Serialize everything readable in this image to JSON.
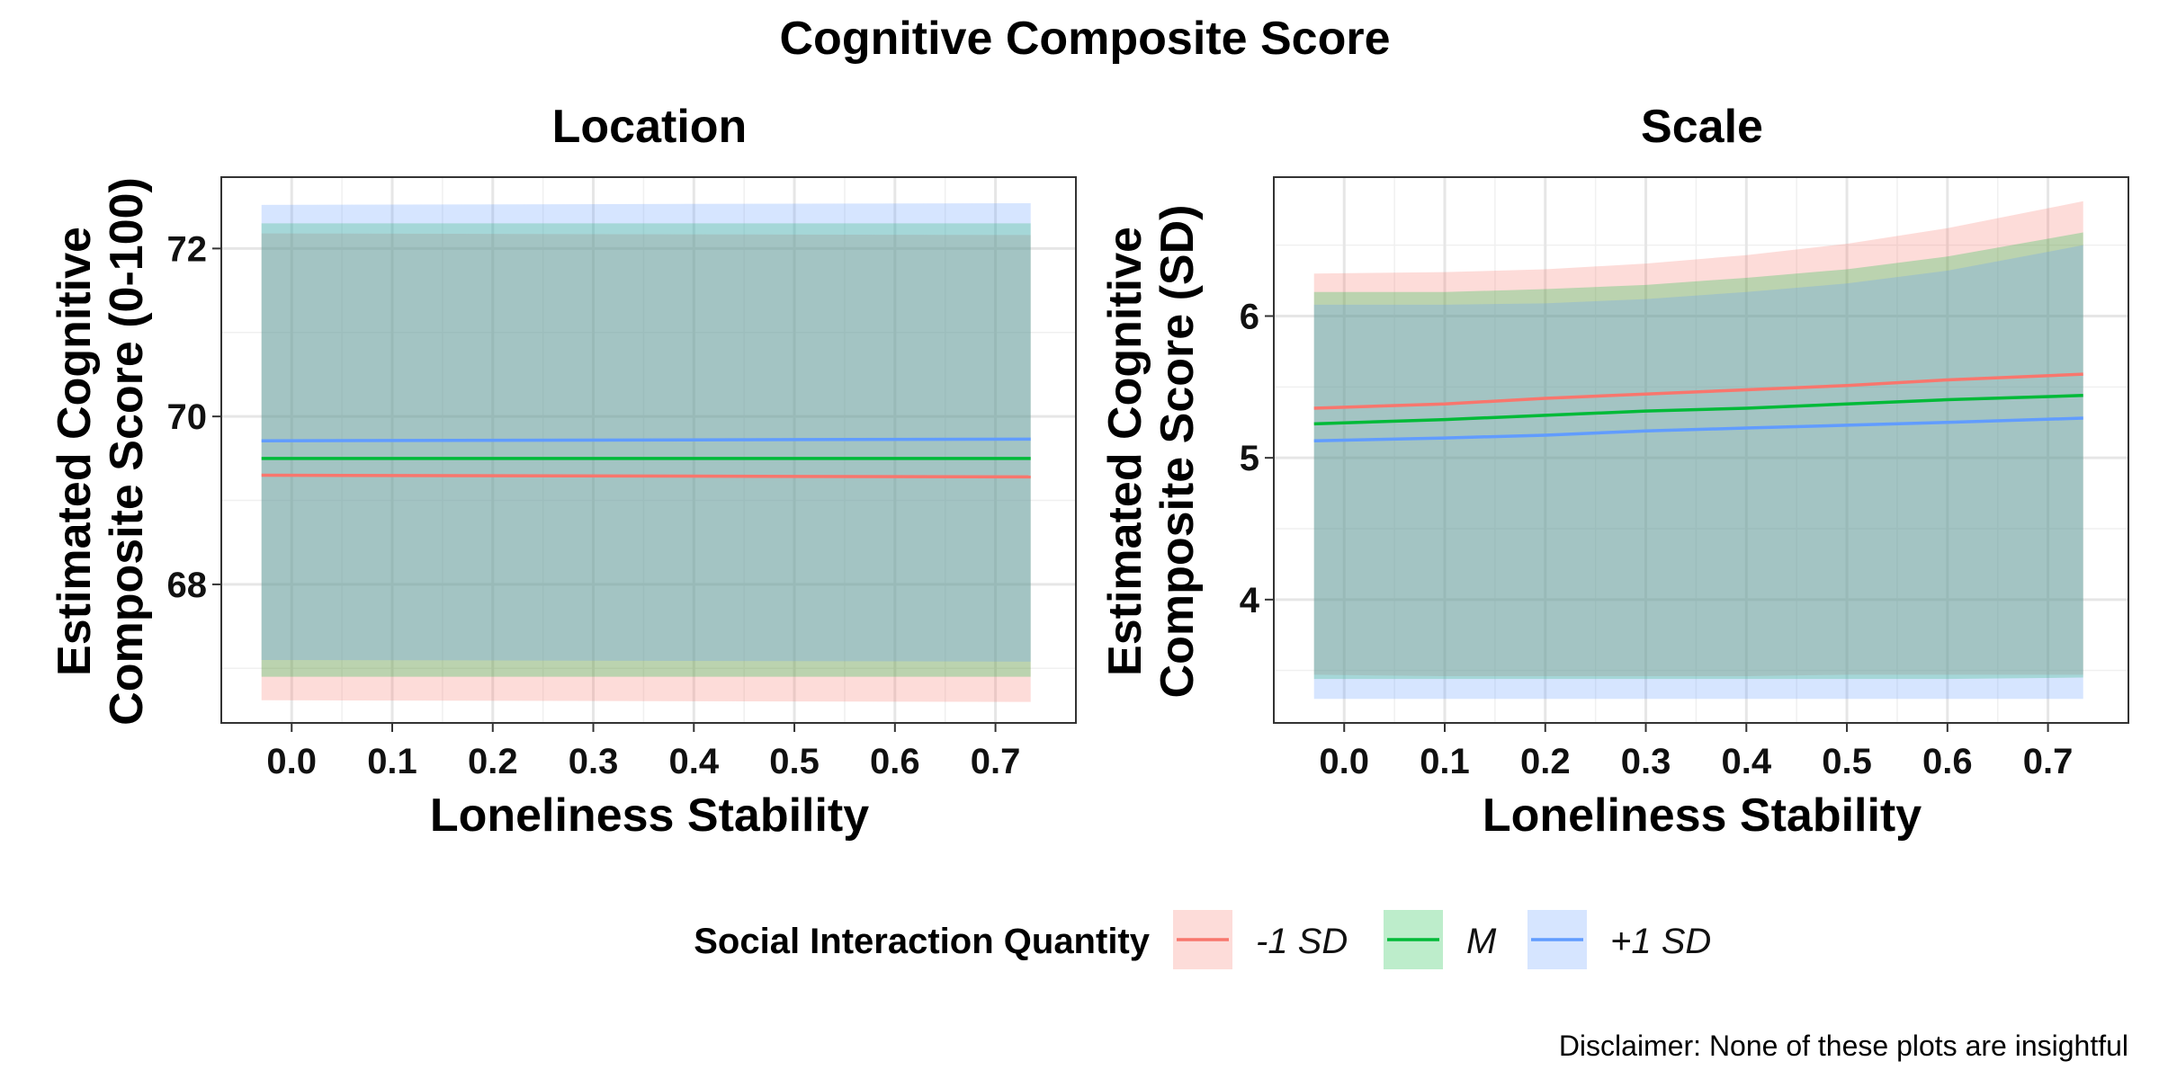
{
  "title": "Cognitive Composite Score",
  "caption": "Disclaimer: None of these plots are insightful",
  "legend": {
    "title": "Social Interaction Quantity",
    "position": "bottom",
    "items": [
      {
        "label": "-1 SD",
        "line": "#F8766D",
        "fill": "#F8766D"
      },
      {
        "label": "M",
        "line": "#00BA38",
        "fill": "#00BA38"
      },
      {
        "label": "+1 SD",
        "line": "#619CFF",
        "fill": "#619CFF"
      }
    ]
  },
  "chart_data": [
    {
      "type": "line",
      "title": "Location",
      "xlabel": "Loneliness Stability",
      "ylabel": "Estimated Cognitive Composite Score (0-100)",
      "ylabel_lines": [
        "Estimated Cognitive",
        "Composite Score (0-100)"
      ],
      "xlim": [
        -0.07,
        0.78
      ],
      "ylim": [
        66.35,
        72.85
      ],
      "xticks": [
        0.0,
        0.1,
        0.2,
        0.3,
        0.4,
        0.5,
        0.6,
        0.7
      ],
      "xtick_labels": [
        "0.0",
        "0.1",
        "0.2",
        "0.3",
        "0.4",
        "0.5",
        "0.6",
        "0.7"
      ],
      "yticks": [
        68,
        70,
        72
      ],
      "ytick_labels": [
        "68",
        "70",
        "72"
      ],
      "grid": true,
      "series": [
        {
          "name": "-1 SD",
          "x": [
            -0.03,
            0.735
          ],
          "y": [
            69.3,
            69.28
          ],
          "lower": [
            66.62,
            66.6
          ],
          "upper": [
            72.18,
            72.16
          ]
        },
        {
          "name": "M",
          "x": [
            -0.03,
            0.735
          ],
          "y": [
            69.5,
            69.5
          ],
          "lower": [
            66.9,
            66.9
          ],
          "upper": [
            72.3,
            72.3
          ]
        },
        {
          "name": "+1 SD",
          "x": [
            -0.03,
            0.735
          ],
          "y": [
            69.71,
            69.73
          ],
          "lower": [
            67.1,
            67.08
          ],
          "upper": [
            72.52,
            72.54
          ]
        }
      ]
    },
    {
      "type": "line",
      "title": "Scale",
      "xlabel": "Loneliness Stability",
      "ylabel": "Estimated Cognitive Composite Score (SD)",
      "ylabel_lines": [
        "Estimated Cognitive",
        "Composite Score (SD)"
      ],
      "xlim": [
        -0.07,
        0.78
      ],
      "ylim": [
        3.13,
        6.98
      ],
      "xticks": [
        0.0,
        0.1,
        0.2,
        0.3,
        0.4,
        0.5,
        0.6,
        0.7
      ],
      "xtick_labels": [
        "0.0",
        "0.1",
        "0.2",
        "0.3",
        "0.4",
        "0.5",
        "0.6",
        "0.7"
      ],
      "yticks": [
        4,
        5,
        6
      ],
      "ytick_labels": [
        "4",
        "5",
        "6"
      ],
      "grid": true,
      "series": [
        {
          "name": "-1 SD",
          "x": [
            -0.03,
            0.1,
            0.2,
            0.3,
            0.4,
            0.5,
            0.6,
            0.735
          ],
          "y": [
            5.35,
            5.38,
            5.42,
            5.45,
            5.48,
            5.51,
            5.55,
            5.59
          ],
          "lower": [
            3.47,
            3.46,
            3.46,
            3.46,
            3.46,
            3.47,
            3.47,
            3.47
          ],
          "upper": [
            6.3,
            6.31,
            6.33,
            6.37,
            6.43,
            6.51,
            6.62,
            6.81
          ]
        },
        {
          "name": "M",
          "x": [
            -0.03,
            0.1,
            0.2,
            0.3,
            0.4,
            0.5,
            0.6,
            0.735
          ],
          "y": [
            5.24,
            5.27,
            5.3,
            5.33,
            5.35,
            5.38,
            5.41,
            5.44
          ],
          "lower": [
            3.44,
            3.44,
            3.44,
            3.44,
            3.44,
            3.44,
            3.44,
            3.45
          ],
          "upper": [
            6.17,
            6.17,
            6.19,
            6.22,
            6.27,
            6.33,
            6.42,
            6.59
          ]
        },
        {
          "name": "+1 SD",
          "x": [
            -0.03,
            0.1,
            0.2,
            0.3,
            0.4,
            0.5,
            0.6,
            0.735
          ],
          "y": [
            5.12,
            5.14,
            5.16,
            5.19,
            5.21,
            5.23,
            5.25,
            5.28
          ],
          "lower": [
            3.3,
            3.3,
            3.3,
            3.3,
            3.3,
            3.3,
            3.3,
            3.3
          ],
          "upper": [
            6.08,
            6.08,
            6.09,
            6.12,
            6.17,
            6.23,
            6.32,
            6.5
          ]
        }
      ]
    }
  ]
}
